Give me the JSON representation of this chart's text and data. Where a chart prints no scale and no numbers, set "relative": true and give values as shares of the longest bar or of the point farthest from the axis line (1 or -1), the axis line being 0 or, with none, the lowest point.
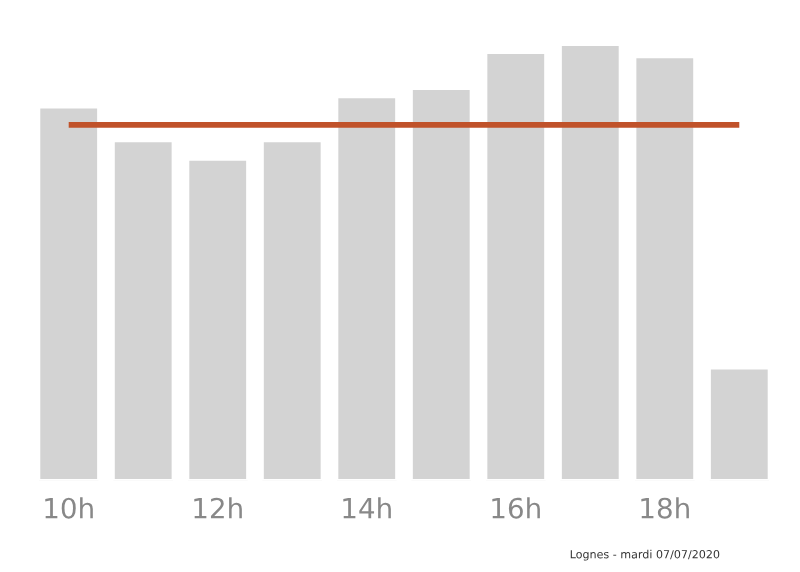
{
  "chart_data": {
    "type": "bar",
    "relative": true,
    "grid": false,
    "legend": false,
    "categories": [
      "10h",
      null,
      "12h",
      null,
      "14h",
      null,
      "16h",
      null,
      "18h",
      null
    ],
    "values": [
      0.857,
      0.779,
      0.737,
      0.779,
      0.88,
      0.899,
      0.982,
      1,
      0.972,
      0.258
    ],
    "color": "#d3d3d3",
    "ref_lines": [
      {
        "axis": "y",
        "value": 0.816,
        "color": "#c0522a"
      }
    ],
    "annotations": [
      "Lognes - mardi 07/07/2020"
    ]
  }
}
